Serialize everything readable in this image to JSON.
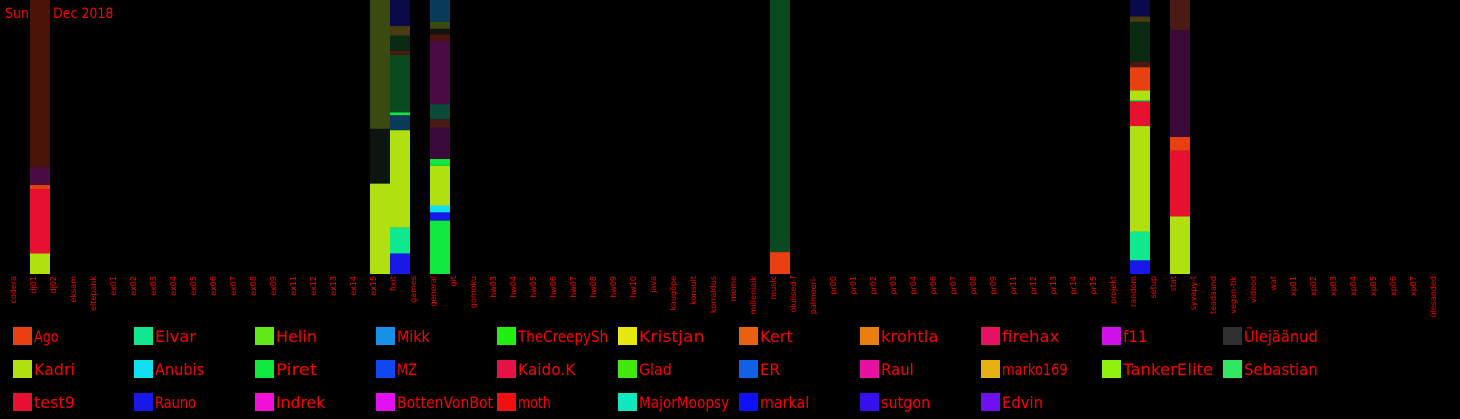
{
  "chart_data": {
    "type": "bar",
    "stacked": true,
    "title": "Sun 30 Dec 2018",
    "xlabel": "",
    "ylabel": "",
    "ylim": [
      0,
      100
    ],
    "grid": false,
    "legend_position": "bottom",
    "categories": [
      "codera",
      "dj01",
      "dj02",
      "eksam",
      "eltepank",
      "ex01",
      "ex02",
      "ex03",
      "ex04",
      "ex05",
      "ex06",
      "ex07",
      "ex08",
      "ex09",
      "ex11",
      "ex12",
      "ex13",
      "ex14",
      "ex15",
      "fixit",
      "games",
      "general",
      "git",
      "gomoku",
      "hw03",
      "hw04",
      "hw05",
      "hw06",
      "hw07",
      "hw08",
      "hw09",
      "hw10",
      "java",
      "kaugõpe",
      "konsult",
      "korraldus",
      "meme",
      "milleniaik",
      "music",
      "olulised-f",
      "palmeeri-",
      "pr00",
      "pr01",
      "pr02",
      "pr03",
      "pr04",
      "pr06",
      "pr07",
      "pr08",
      "pr09",
      "pr11",
      "pr12",
      "pr13",
      "pr14",
      "pr15",
      "projekt",
      "random",
      "setup",
      "stat",
      "syvapy-t",
      "teadaand",
      "vegan-tik",
      "videod",
      "wat",
      "xp01",
      "xp02",
      "xp03",
      "xp04",
      "xp05",
      "xp06",
      "xp07",
      "ülesanded"
    ],
    "stacks": [
      {
        "category": "dj01",
        "segments": [
          {
            "series": "Kadri",
            "value": 7.5
          },
          {
            "series": "test9",
            "value": 23.5
          },
          {
            "series": "Ago",
            "value": 1.5
          },
          {
            "series": "Ülejäänud",
            "value": 6.5
          },
          {
            "series": "Ülejäänud",
            "value": 61
          }
        ]
      },
      {
        "category": "ex15",
        "segments": [
          {
            "series": "Kadri",
            "value": 33
          },
          {
            "series": "Ülejäänud",
            "value": 20
          },
          {
            "series": "Ülejäänud",
            "value": 47
          }
        ]
      },
      {
        "category": "fixit",
        "segments": [
          {
            "series": "Rauno",
            "value": 7.5
          },
          {
            "series": "Elvar",
            "value": 9.5
          },
          {
            "series": "Kadri",
            "value": 35.5
          },
          {
            "series": "Ülejäänud",
            "value": 5.5
          },
          {
            "series": "Piret",
            "value": 1
          },
          {
            "series": "Ülejäänud",
            "value": 21
          },
          {
            "series": "Ülejäänud",
            "value": 1.5
          },
          {
            "series": "Ülejäänud",
            "value": 5.5
          },
          {
            "series": "Ülejäänud",
            "value": 3.5
          },
          {
            "series": "Ülejäänud",
            "value": 9.5
          }
        ]
      },
      {
        "category": "general",
        "segments": [
          {
            "series": "Piret",
            "value": 19.5
          },
          {
            "series": "Rauno",
            "value": 3
          },
          {
            "series": "Anubis",
            "value": 2.5
          },
          {
            "series": "Kadri",
            "value": 14.5
          },
          {
            "series": "Piret",
            "value": 2.5
          },
          {
            "series": "Ülejäänud",
            "value": 11.5
          },
          {
            "series": "Ülejäänud",
            "value": 3
          },
          {
            "series": "Ülejäänud",
            "value": 5.5
          },
          {
            "series": "Ülejäänud",
            "value": 23
          },
          {
            "series": "Ülejäänud",
            "value": 2.5
          },
          {
            "series": "Ülejäänud",
            "value": 2
          },
          {
            "series": "Ülejäänud",
            "value": 2.5
          },
          {
            "series": "Ülejäänud",
            "value": 8
          }
        ]
      },
      {
        "category": "music",
        "segments": [
          {
            "series": "Ago",
            "value": 8
          },
          {
            "series": "Ülejäänud",
            "value": 92
          }
        ]
      },
      {
        "category": "random",
        "segments": [
          {
            "series": "Rauno",
            "value": 5
          },
          {
            "series": "Elvar",
            "value": 10.5
          },
          {
            "series": "Kadri",
            "value": 38.5
          },
          {
            "series": "test9",
            "value": 9
          },
          {
            "series": "Piret",
            "value": 0.5
          },
          {
            "series": "Kadri",
            "value": 3.5
          },
          {
            "series": "Ago",
            "value": 8.5
          },
          {
            "series": "Ülejäänud",
            "value": 2
          },
          {
            "series": "Ülejäänud",
            "value": 14.5
          },
          {
            "series": "Ülejäänud",
            "value": 2
          },
          {
            "series": "Ülejäänud",
            "value": 6
          }
        ]
      },
      {
        "category": "stat",
        "segments": [
          {
            "series": "Kadri",
            "value": 21
          },
          {
            "series": "test9",
            "value": 24
          },
          {
            "series": "Ago",
            "value": 5
          },
          {
            "series": "Ülejäänud",
            "value": 39
          },
          {
            "series": "Ülejäänud",
            "value": 11
          }
        ]
      }
    ],
    "legend": [
      {
        "name": "Ago",
        "color": "#e84010"
      },
      {
        "name": "Elvar",
        "color": "#10e890"
      },
      {
        "name": "Helin",
        "color": "#60e818"
      },
      {
        "name": "Mikk",
        "color": "#1890e8"
      },
      {
        "name": "TheCreepySh",
        "color": "#20f010"
      },
      {
        "name": "Kristjan",
        "color": "#e8e810"
      },
      {
        "name": "Kert",
        "color": "#e86010"
      },
      {
        "name": "krohtla",
        "color": "#e88010"
      },
      {
        "name": "firehax",
        "color": "#e81060"
      },
      {
        "name": "f11",
        "color": "#d010e8"
      },
      {
        "name": "Ülejäänud",
        "color": "#303030"
      },
      {
        "name": "Kadri",
        "color": "#b0e010"
      },
      {
        "name": "Anubis",
        "color": "#10e0f0"
      },
      {
        "name": "Piret",
        "color": "#10e840"
      },
      {
        "name": "MZ",
        "color": "#1048f0"
      },
      {
        "name": "Kaido.K",
        "color": "#e81048"
      },
      {
        "name": "Glad",
        "color": "#40e810"
      },
      {
        "name": "ER",
        "color": "#1060e8"
      },
      {
        "name": "Raul",
        "color": "#e810a0"
      },
      {
        "name": "marko169",
        "color": "#e8b010"
      },
      {
        "name": "TankerElite",
        "color": "#90f010"
      },
      {
        "name": "Sebastian",
        "color": "#30e860"
      },
      {
        "name": "test9",
        "color": "#e81030"
      },
      {
        "name": "Rauno",
        "color": "#1818e8"
      },
      {
        "name": "Indrek",
        "color": "#f010d8"
      },
      {
        "name": "BottenVonBot",
        "color": "#e010f0"
      },
      {
        "name": "moth",
        "color": "#f01010"
      },
      {
        "name": "MajorMoopsy",
        "color": "#10e8c0"
      },
      {
        "name": "markal",
        "color": "#1010f8"
      },
      {
        "name": "sutgon",
        "color": "#3810f0"
      },
      {
        "name": "Edvin",
        "color": "#7010f0"
      }
    ],
    "other_shades": [
      "#4a0a44",
      "#4a1408",
      "#0e140e",
      "#3a4a10",
      "#0a3a5a",
      "#0a4a20",
      "#4a1a10",
      "#0a2a14",
      "#4a3a10",
      "#0a0a4a",
      "#3a0a3a",
      "#4a1a14",
      "#0a4a3a"
    ]
  },
  "colors": {
    "text": "#ff0000",
    "background": "#000000"
  }
}
